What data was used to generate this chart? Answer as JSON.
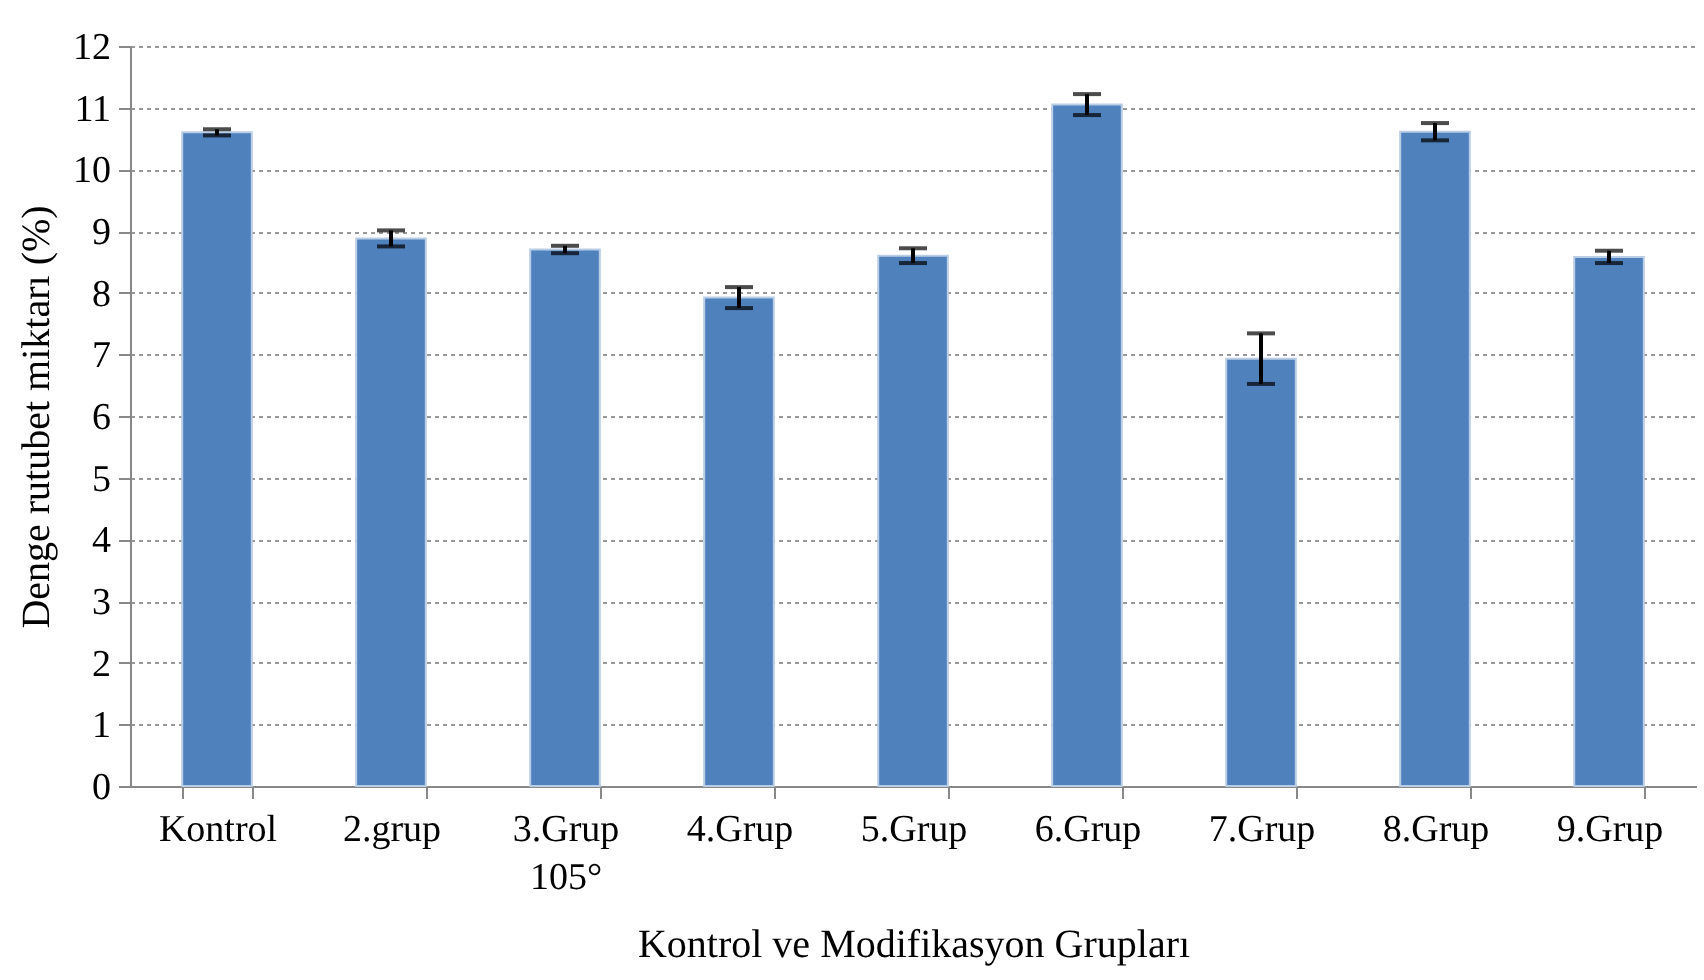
{
  "chart_data": {
    "type": "bar",
    "xlabel": "Kontrol ve Modifikasyon Grupları",
    "ylabel": "Denge rutubet miktarı (%)",
    "categories": [
      "Kontrol",
      "2.grup",
      "3.Grup\n105°",
      "4.Grup",
      "5.Grup",
      "6.Grup",
      "7.Grup",
      "8.Grup",
      "9.Grup"
    ],
    "values": [
      10.6,
      8.88,
      8.7,
      7.92,
      8.6,
      11.05,
      6.93,
      10.61,
      8.58
    ],
    "errors": [
      0.05,
      0.13,
      0.06,
      0.17,
      0.12,
      0.17,
      0.41,
      0.14,
      0.1
    ],
    "color": "#4f81bd",
    "ylim": [
      0,
      12
    ],
    "yticks": [
      0,
      1,
      2,
      3,
      4,
      5,
      6,
      7,
      8,
      9,
      10,
      11,
      12
    ],
    "grid": "y"
  }
}
